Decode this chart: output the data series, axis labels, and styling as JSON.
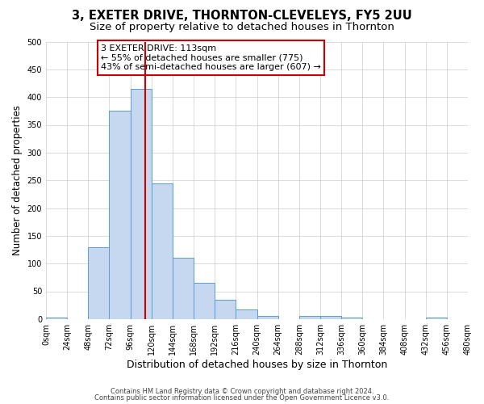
{
  "title": "3, EXETER DRIVE, THORNTON-CLEVELEYS, FY5 2UU",
  "subtitle": "Size of property relative to detached houses in Thornton",
  "xlabel": "Distribution of detached houses by size in Thornton",
  "ylabel": "Number of detached properties",
  "bar_values": [
    2,
    0,
    130,
    375,
    415,
    245,
    110,
    65,
    35,
    17,
    6,
    0,
    6,
    5,
    2,
    0,
    0,
    0,
    2,
    0
  ],
  "bin_edges": [
    0,
    24,
    48,
    72,
    96,
    120,
    144,
    168,
    192,
    216,
    240,
    264,
    288,
    312,
    336,
    360,
    384,
    408,
    432,
    456,
    480
  ],
  "tick_labels": [
    "0sqm",
    "24sqm",
    "48sqm",
    "72sqm",
    "96sqm",
    "120sqm",
    "144sqm",
    "168sqm",
    "192sqm",
    "216sqm",
    "240sqm",
    "264sqm",
    "288sqm",
    "312sqm",
    "336sqm",
    "360sqm",
    "384sqm",
    "408sqm",
    "432sqm",
    "456sqm",
    "480sqm"
  ],
  "bar_color": "#c5d8f0",
  "bar_edge_color": "#5b9bd5",
  "vline_x": 113,
  "vline_color": "#cc0000",
  "ylim": [
    0,
    500
  ],
  "yticks": [
    0,
    50,
    100,
    150,
    200,
    250,
    300,
    350,
    400,
    450,
    500
  ],
  "annotation_line1": "3 EXETER DRIVE: 113sqm",
  "annotation_line2": "← 55% of detached houses are smaller (775)",
  "annotation_line3": "43% of semi-detached houses are larger (607) →",
  "footer_line1": "Contains HM Land Registry data © Crown copyright and database right 2024.",
  "footer_line2": "Contains public sector information licensed under the Open Government Licence v3.0.",
  "background_color": "#ffffff",
  "grid_color": "#cccccc",
  "title_fontsize": 10.5,
  "subtitle_fontsize": 9.5,
  "xlabel_fontsize": 9,
  "ylabel_fontsize": 8.5,
  "tick_fontsize": 7,
  "annot_fontsize": 8,
  "footer_fontsize": 6
}
